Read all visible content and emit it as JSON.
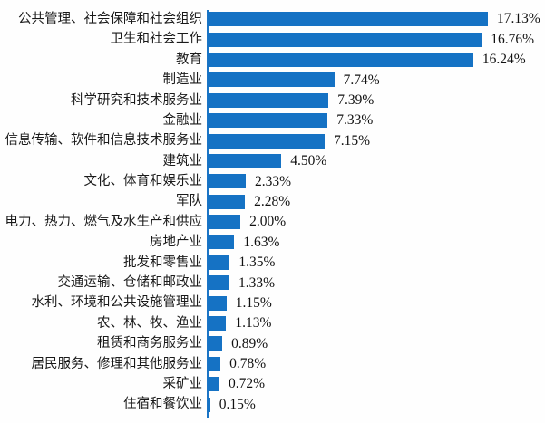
{
  "chart_data": {
    "type": "bar",
    "orientation": "horizontal",
    "title": "",
    "xlabel": "",
    "ylabel": "",
    "unit": "%",
    "xlim": [
      0,
      18
    ],
    "grid": false,
    "legend": false,
    "value_label_position": "outside-end",
    "categories": [
      "公共管理、社会保障和社会组织",
      "卫生和社会工作",
      "教育",
      "制造业",
      "科学研究和技术服务业",
      "金融业",
      "信息传输、软件和信息技术服务业",
      "建筑业",
      "文化、体育和娱乐业",
      "军队",
      "电力、热力、燃气及水生产和供应",
      "房地产业",
      "批发和零售业",
      "交通运输、仓储和邮政业",
      "水利、环境和公共设施管理业",
      "农、林、牧、渔业",
      "租赁和商务服务业",
      "居民服务、修理和其他服务业",
      "采矿业",
      "住宿和餐饮业"
    ],
    "values": [
      17.13,
      16.76,
      16.24,
      7.74,
      7.39,
      7.33,
      7.15,
      4.5,
      2.33,
      2.28,
      2.0,
      1.63,
      1.35,
      1.33,
      1.15,
      1.13,
      0.89,
      0.78,
      0.72,
      0.15
    ],
    "value_labels": [
      "17.13%",
      "16.76%",
      "16.24%",
      "7.74%",
      "7.39%",
      "7.33%",
      "7.15%",
      "4.50%",
      "2.33%",
      "2.28%",
      "2.00%",
      "1.63%",
      "1.35%",
      "1.33%",
      "1.15%",
      "1.13%",
      "0.89%",
      "0.78%",
      "0.72%",
      "0.15%"
    ]
  },
  "colors": {
    "bar": "#1572c4",
    "axis": "#1b74c5",
    "text": "#1a1a1a",
    "background": "#fefefe"
  }
}
